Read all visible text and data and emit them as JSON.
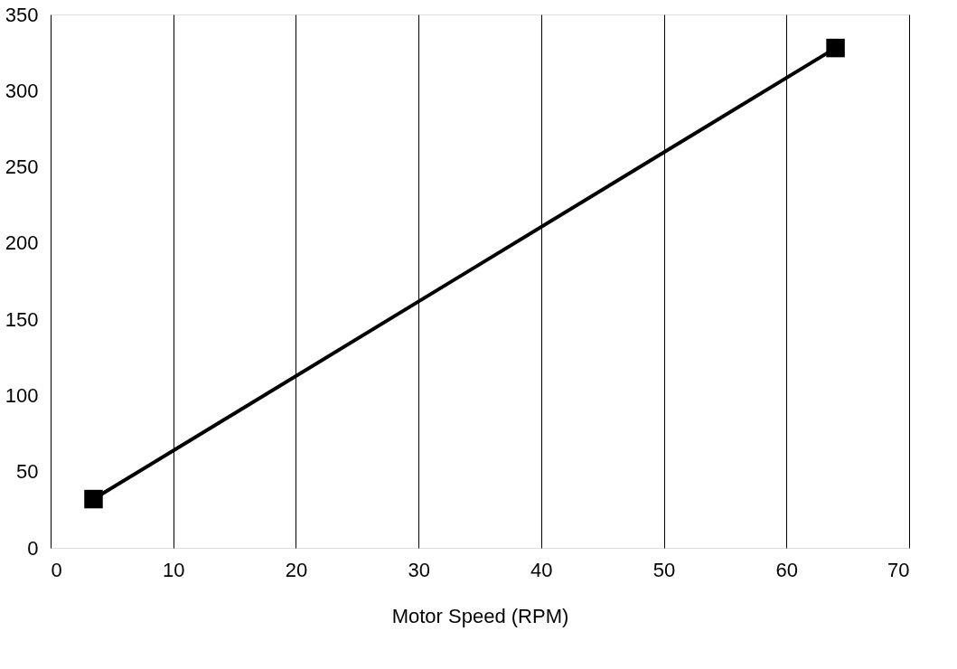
{
  "chart_data": {
    "type": "line",
    "xlabel": "Motor Speed (RPM)",
    "x": [
      3.5,
      64
    ],
    "series": [
      {
        "color": "#000000",
        "values": [
          32,
          328
        ]
      }
    ],
    "xlim": [
      0,
      70
    ],
    "xticks": [
      0,
      10,
      20,
      30,
      40,
      50,
      60,
      70
    ],
    "ylim": [
      0,
      350
    ],
    "yticks": [
      0,
      50,
      100,
      150,
      200,
      250,
      300,
      350
    ],
    "grid": "x",
    "marker": "square",
    "line_style": "solid"
  }
}
